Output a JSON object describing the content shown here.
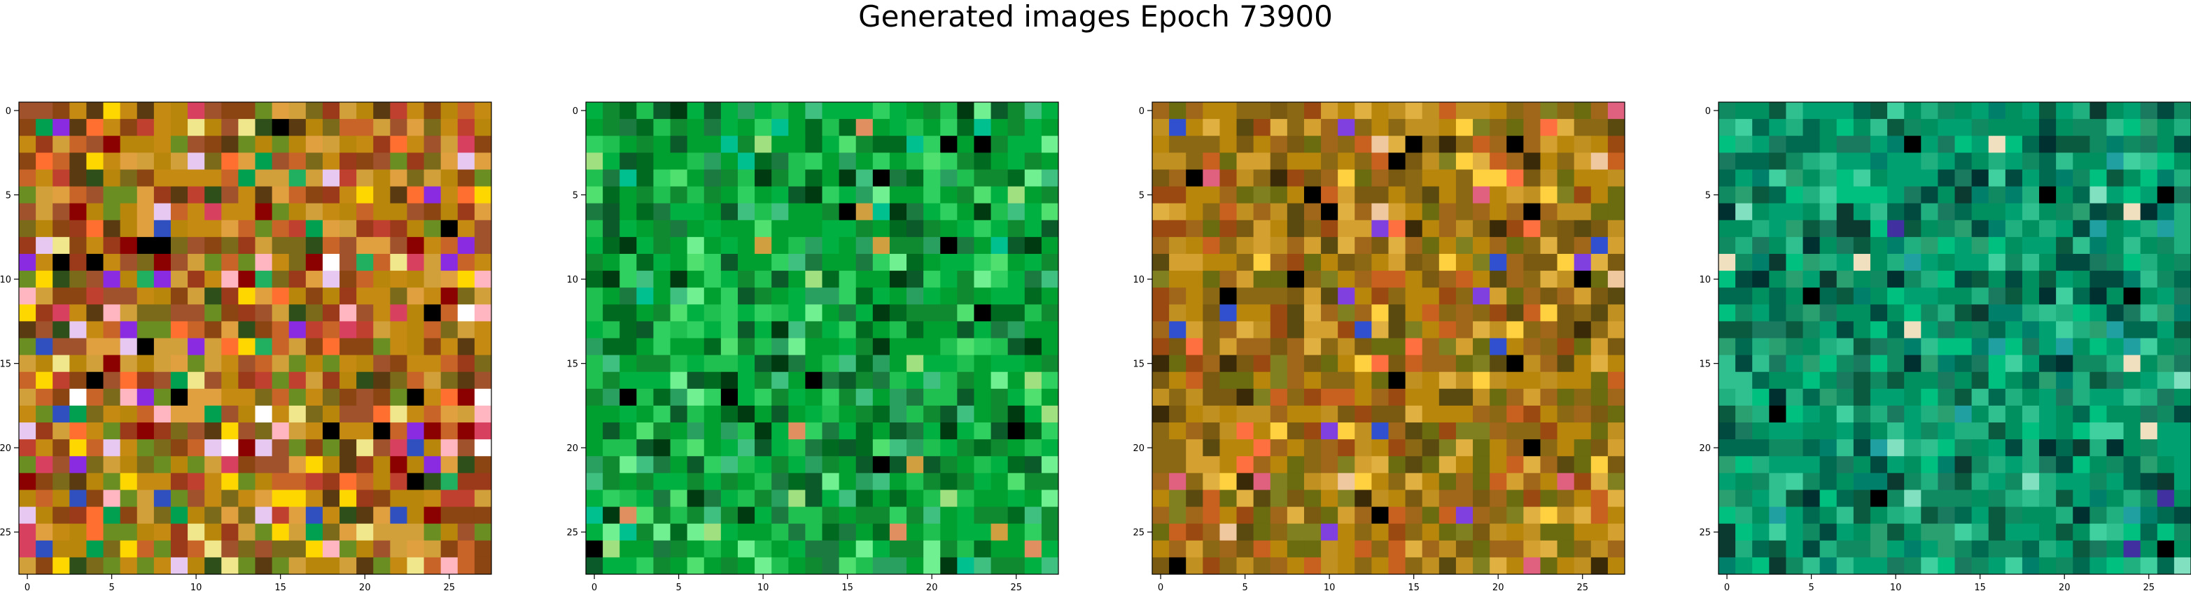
{
  "figure": {
    "title": "Generated images Epoch 73900"
  },
  "chart_data": [
    {
      "type": "heatmap",
      "title": "",
      "grid_size": [
        28,
        28
      ],
      "x_ticks": [
        "0",
        "5",
        "10",
        "15",
        "20",
        "25"
      ],
      "y_ticks": [
        "0",
        "5",
        "10",
        "15",
        "20",
        "25"
      ],
      "xlim": [
        -0.5,
        27.5
      ],
      "ylim": [
        27.5,
        -0.5
      ],
      "seed": 11,
      "palette": [
        "#c58a12",
        "#b8860b",
        "#a0522d",
        "#8b4513",
        "#d2a03a",
        "#7a6a1a",
        "#6b8e23",
        "#c86428",
        "#e0a040",
        "#9a3a1a",
        "#5a3a10",
        "#2f4f1a",
        "#c04030",
        "#d84060",
        "#8a2be2",
        "#3050c0",
        "#ffd700",
        "#f0e68c",
        "#ffb6c1",
        "#e6c8f0",
        "#00a050",
        "#20b060",
        "#000000",
        "#ffffff",
        "#ff7030",
        "#8b0000"
      ],
      "weights": [
        14,
        12,
        10,
        8,
        8,
        7,
        7,
        7,
        6,
        5,
        4,
        3,
        3,
        2,
        2,
        2,
        3,
        2,
        2,
        2,
        2,
        1,
        2,
        1,
        3,
        2
      ]
    },
    {
      "type": "heatmap",
      "title": "",
      "grid_size": [
        28,
        28
      ],
      "x_ticks": [
        "0",
        "5",
        "10",
        "15",
        "20",
        "25"
      ],
      "y_ticks": [
        "0",
        "5",
        "10",
        "15",
        "20",
        "25"
      ],
      "xlim": [
        -0.5,
        27.5
      ],
      "ylim": [
        27.5,
        -0.5
      ],
      "seed": 23,
      "palette": [
        "#00a030",
        "#00b040",
        "#108a30",
        "#20c050",
        "#006a20",
        "#30d060",
        "#0a5a2a",
        "#50e070",
        "#40c080",
        "#003a10",
        "#1a7a40",
        "#70f090",
        "#2aa060",
        "#00c090",
        "#000000",
        "#e09060",
        "#d0a040",
        "#a0e080"
      ],
      "weights": [
        18,
        16,
        14,
        10,
        8,
        6,
        5,
        4,
        4,
        4,
        4,
        3,
        3,
        2,
        3,
        1,
        1,
        1
      ]
    },
    {
      "type": "heatmap",
      "title": "",
      "grid_size": [
        28,
        28
      ],
      "x_ticks": [
        "0",
        "5",
        "10",
        "15",
        "20",
        "25"
      ],
      "y_ticks": [
        "0",
        "5",
        "10",
        "15",
        "20",
        "25"
      ],
      "xlim": [
        -0.5,
        27.5
      ],
      "ylim": [
        27.5,
        -0.5
      ],
      "seed": 37,
      "palette": [
        "#b8860b",
        "#a0661a",
        "#8b6914",
        "#c09020",
        "#7a5a10",
        "#d4a030",
        "#6b6b10",
        "#9a4a10",
        "#e0b040",
        "#ffd040",
        "#5a4a10",
        "#c86020",
        "#808020",
        "#3a2a08",
        "#000000",
        "#f0c8a0",
        "#ff7040",
        "#3050d0",
        "#8040e0",
        "#e06080"
      ],
      "weights": [
        16,
        14,
        12,
        10,
        9,
        8,
        7,
        6,
        5,
        4,
        4,
        4,
        4,
        2,
        2,
        1,
        2,
        1,
        1,
        1
      ]
    },
    {
      "type": "heatmap",
      "title": "",
      "grid_size": [
        28,
        28
      ],
      "x_ticks": [
        "0",
        "5",
        "10",
        "15",
        "20",
        "25"
      ],
      "y_ticks": [
        "0",
        "5",
        "10",
        "15",
        "20",
        "25"
      ],
      "xlim": [
        -0.5,
        27.5
      ],
      "ylim": [
        27.5,
        -0.5
      ],
      "seed": 53,
      "palette": [
        "#009060",
        "#00a070",
        "#108a60",
        "#20b080",
        "#006a50",
        "#00c080",
        "#0a5a40",
        "#1a7a60",
        "#30c090",
        "#004a40",
        "#00806a",
        "#40d0a0",
        "#2aa070",
        "#0a3a30",
        "#003030",
        "#000000",
        "#20a0a0",
        "#80e0c0",
        "#4030a0",
        "#f0e0c0"
      ],
      "weights": [
        16,
        14,
        12,
        10,
        9,
        8,
        7,
        6,
        5,
        5,
        5,
        4,
        4,
        3,
        2,
        2,
        2,
        1,
        1,
        1
      ]
    }
  ]
}
